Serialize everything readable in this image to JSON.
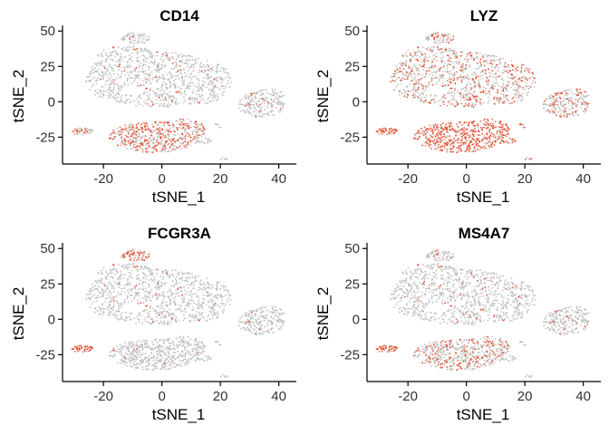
{
  "chart_data": [
    {
      "type": "scatter",
      "title": "CD14",
      "xlabel": "tSNE_1",
      "ylabel": "tSNE_2",
      "xlim": [
        -34,
        46
      ],
      "ylim": [
        -44,
        54
      ],
      "xticks": [
        -20,
        0,
        20,
        40
      ],
      "yticks": [
        -25,
        0,
        25,
        50
      ],
      "x_tick_labels": [
        "-20",
        "0",
        "20",
        "40"
      ],
      "y_tick_labels": [
        "-25",
        "0",
        "25",
        "50"
      ],
      "colors": {
        "low": "#c0c0c0",
        "high": "#f23a14"
      },
      "grid": false,
      "highlight": {
        "cluster_south": 0.55,
        "cluster_cd16": 0.05,
        "cluster_right": 0.05,
        "cluster_far_left": 0.3,
        "cluster_top": 0.03,
        "main": 0.05
      }
    },
    {
      "type": "scatter",
      "title": "LYZ",
      "xlabel": "tSNE_1",
      "ylabel": "tSNE_2",
      "xlim": [
        -34,
        46
      ],
      "ylim": [
        -44,
        54
      ],
      "xticks": [
        -20,
        0,
        20,
        40
      ],
      "yticks": [
        -25,
        0,
        25,
        50
      ],
      "x_tick_labels": [
        "-20",
        "0",
        "20",
        "40"
      ],
      "y_tick_labels": [
        "-25",
        "0",
        "25",
        "50"
      ],
      "colors": {
        "low": "#c0c0c0",
        "high": "#f23a14"
      },
      "grid": false,
      "highlight": {
        "cluster_south": 0.95,
        "cluster_cd16": 0.8,
        "cluster_right": 0.35,
        "cluster_far_left": 0.9,
        "cluster_top": 0.3,
        "main": 0.35
      }
    },
    {
      "type": "scatter",
      "title": "FCGR3A",
      "xlabel": "tSNE_1",
      "ylabel": "tSNE_2",
      "xlim": [
        -34,
        46
      ],
      "ylim": [
        -44,
        54
      ],
      "xticks": [
        -20,
        0,
        20,
        40
      ],
      "yticks": [
        -25,
        0,
        25,
        50
      ],
      "x_tick_labels": [
        "-20",
        "0",
        "20",
        "40"
      ],
      "y_tick_labels": [
        "-25",
        "0",
        "25",
        "50"
      ],
      "colors": {
        "low": "#c0c0c0",
        "high": "#f23a14"
      },
      "grid": false,
      "highlight": {
        "cluster_south": 0.03,
        "cluster_cd16": 0.02,
        "cluster_right": 0.03,
        "cluster_far_left": 0.95,
        "cluster_top": 0.75,
        "main": 0.03
      }
    },
    {
      "type": "scatter",
      "title": "MS4A7",
      "xlabel": "tSNE_1",
      "ylabel": "tSNE_2",
      "xlim": [
        -34,
        46
      ],
      "ylim": [
        -44,
        54
      ],
      "xticks": [
        -20,
        0,
        20,
        40
      ],
      "yticks": [
        -25,
        0,
        25,
        50
      ],
      "x_tick_labels": [
        "-20",
        "0",
        "20",
        "40"
      ],
      "y_tick_labels": [
        "-25",
        "0",
        "25",
        "50"
      ],
      "colors": {
        "low": "#c0c0c0",
        "high": "#f23a14"
      },
      "grid": false,
      "highlight": {
        "cluster_south": 0.35,
        "cluster_cd16": 0.05,
        "cluster_right": 0.05,
        "cluster_far_left": 0.9,
        "cluster_top": 0.05,
        "main": 0.05
      }
    }
  ]
}
